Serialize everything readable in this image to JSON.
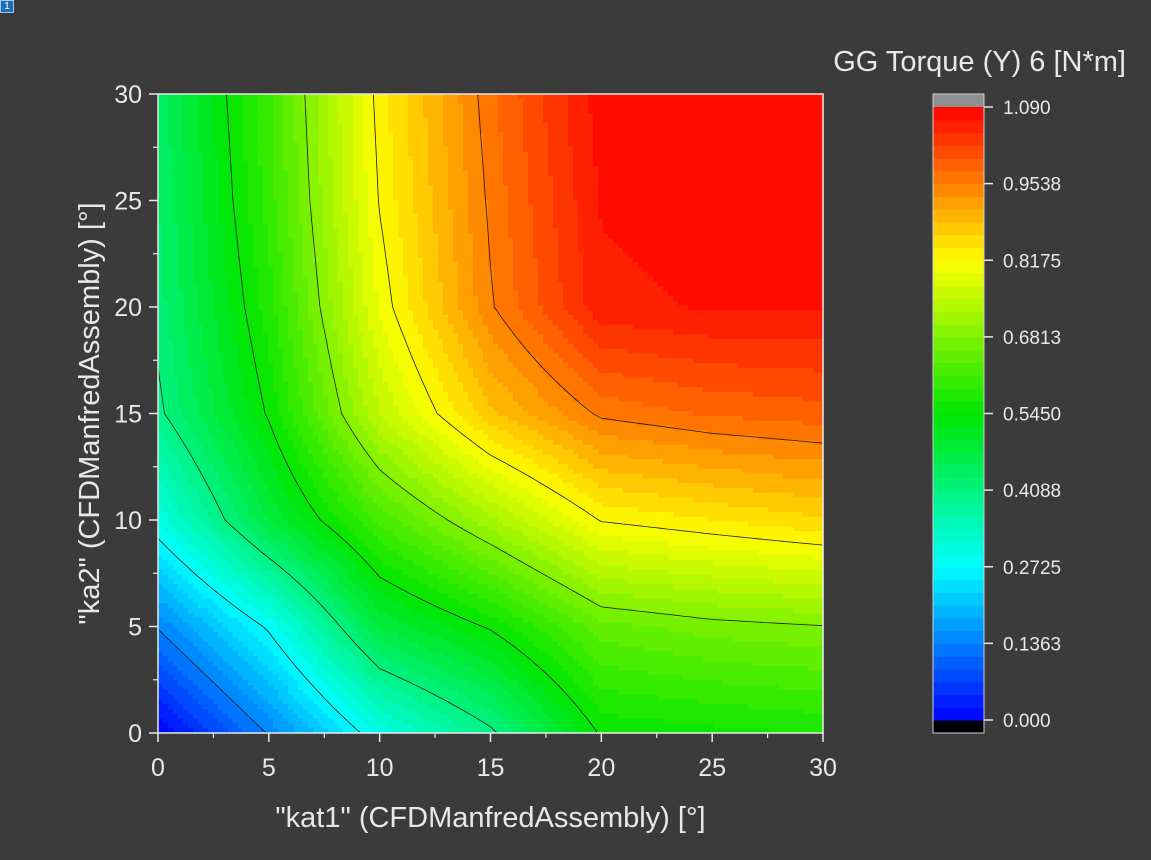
{
  "corner_badge": "1",
  "chart_data": {
    "type": "heatmap",
    "subtype": "filled-contour",
    "colorbar_title": "GG Torque (Y) 6 [N*m]",
    "xlabel": "\"kat1\" (CFDManfredAssembly) [°]",
    "ylabel": "\"ka2\" (CFDManfredAssembly) [°]",
    "xlim": [
      0,
      30
    ],
    "ylim": [
      0,
      30
    ],
    "x_ticks": [
      "0",
      "5",
      "10",
      "15",
      "20",
      "25",
      "30"
    ],
    "y_ticks": [
      "0",
      "5",
      "10",
      "15",
      "20",
      "25",
      "30"
    ],
    "x": [
      0,
      5,
      10,
      15,
      20,
      25,
      30
    ],
    "y": [
      0,
      5,
      10,
      15,
      20,
      25,
      30
    ],
    "z": [
      [
        0.0,
        0.14,
        0.3,
        0.4,
        0.55,
        0.56,
        0.57
      ],
      [
        0.14,
        0.28,
        0.48,
        0.55,
        0.65,
        0.67,
        0.68
      ],
      [
        0.3,
        0.48,
        0.62,
        0.72,
        0.82,
        0.84,
        0.86
      ],
      [
        0.4,
        0.55,
        0.75,
        0.88,
        0.96,
        0.98,
        0.99
      ],
      [
        0.42,
        0.58,
        0.8,
        0.95,
        1.06,
        1.07,
        1.07
      ],
      [
        0.43,
        0.6,
        0.82,
        0.96,
        1.07,
        1.08,
        1.085
      ],
      [
        0.44,
        0.61,
        0.83,
        0.97,
        1.08,
        1.085,
        1.09
      ]
    ],
    "colorbar": {
      "min": 0.0,
      "max": 1.09,
      "tick_labels": [
        "0.000",
        "0.1363",
        "0.2725",
        "0.4088",
        "0.5450",
        "0.6813",
        "0.8175",
        "0.9538",
        "1.090"
      ],
      "tick_values": [
        0.0,
        0.1363,
        0.2725,
        0.4088,
        0.545,
        0.6813,
        0.8175,
        0.9538,
        1.09
      ],
      "levels": 48,
      "colormap": "rainbow (blue-cyan-green-yellow-red)",
      "under_color": "#000000",
      "over_color": "#8f8f8f"
    },
    "contour_lines": [
      0.1363,
      0.2725,
      0.4088,
      0.545,
      0.6813,
      0.8175,
      0.9538
    ],
    "grid": false
  }
}
